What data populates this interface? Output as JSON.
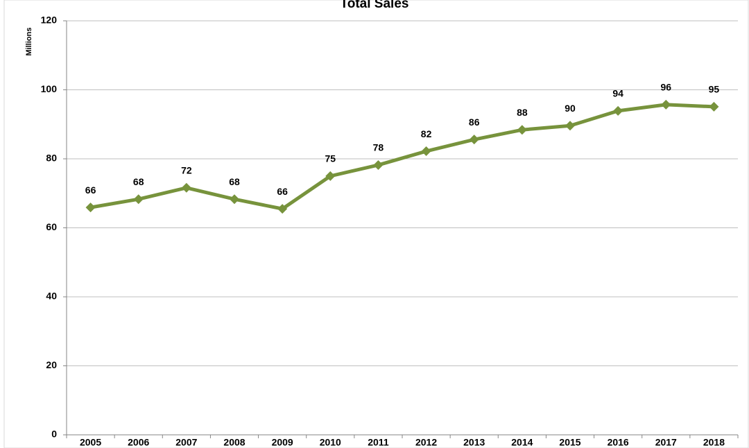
{
  "chart_data": {
    "type": "line",
    "title": "Total Sales",
    "y_label": "Millions",
    "categories": [
      "2005",
      "2006",
      "2007",
      "2008",
      "2009",
      "2010",
      "2011",
      "2012",
      "2013",
      "2014",
      "2015",
      "2016",
      "2017",
      "2018"
    ],
    "values": [
      65.9,
      68.3,
      71.6,
      68.3,
      65.5,
      75.0,
      78.2,
      82.2,
      85.6,
      88.4,
      89.6,
      93.9,
      95.7,
      95.1
    ],
    "value_labels": [
      "66",
      "68",
      "72",
      "68",
      "66",
      "75",
      "78",
      "82",
      "86",
      "88",
      "90",
      "94",
      "96",
      "95"
    ],
    "color": "#77933c",
    "ylim": [
      0,
      120
    ],
    "yticks": [
      0,
      20,
      40,
      60,
      80,
      100,
      120
    ],
    "grid": true
  }
}
